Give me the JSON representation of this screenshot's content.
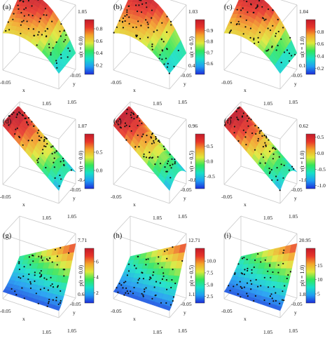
{
  "figure": {
    "colormap": [
      "#1c2cd8",
      "#1f9df2",
      "#18e0c8",
      "#32e65a",
      "#dfe93a",
      "#f3a52a",
      "#e8362a",
      "#c21a2a"
    ],
    "point_color": "#111111",
    "box_color": "#c9c9c9"
  },
  "chart_data": [
    {
      "id": "a",
      "label": "(a)",
      "type": "surface3d",
      "surface": "u",
      "z_top": "1.05",
      "z_bottom": "",
      "x_label": "x",
      "y_label": "y",
      "x_ticks": [
        "-0.05",
        "1.05"
      ],
      "y_ticks": [
        "-0.05",
        "1.05"
      ],
      "colorbar_label": "u(t = 0.0)",
      "colorbar_ticks": [
        "0.8",
        "0.6",
        "0.4",
        "0.2"
      ],
      "colorbar_range": [
        0.05,
        0.95
      ],
      "colorbar_tick_values": [
        0.8,
        0.6,
        0.4,
        0.2
      ]
    },
    {
      "id": "b",
      "label": "(b)",
      "type": "surface3d",
      "surface": "u",
      "z_top": "1.03",
      "z_bottom": "0.45",
      "x_label": "x",
      "y_label": "y",
      "x_ticks": [
        "-0.05",
        "1.05"
      ],
      "y_ticks": [
        "-0.05",
        "1.05"
      ],
      "colorbar_label": "u(t = 0.5)",
      "colorbar_ticks": [
        "0.9",
        "0.8",
        "0.7",
        "0.6"
      ],
      "colorbar_range": [
        0.5,
        1.0
      ],
      "colorbar_tick_values": [
        0.9,
        0.8,
        0.7,
        0.6
      ]
    },
    {
      "id": "c",
      "label": "(c)",
      "type": "surface3d",
      "surface": "u",
      "z_top": "1.04",
      "z_bottom": "0.10",
      "x_label": "x",
      "y_label": "y",
      "x_ticks": [
        "-0.05",
        "1.05"
      ],
      "y_ticks": [
        "-0.05",
        "1.05"
      ],
      "colorbar_label": "u(t = 1.0)",
      "colorbar_ticks": [
        "0.8",
        "0.6",
        "0.4",
        "0.2"
      ],
      "colorbar_range": [
        0.1,
        1.0
      ],
      "colorbar_tick_values": [
        0.8,
        0.6,
        0.4,
        0.2
      ]
    },
    {
      "id": "d",
      "label": "(d)",
      "type": "surface3d",
      "surface": "v",
      "z_top": "1.07",
      "z_bottom": "-0.49",
      "x_label": "x",
      "y_label": "y",
      "x_ticks": [
        "-0.05",
        "1.05"
      ],
      "y_ticks": [
        "-0.05",
        "1.05"
      ],
      "colorbar_label": "v(t = 0.0)",
      "colorbar_ticks": [
        "0.5",
        "0.0"
      ],
      "colorbar_range": [
        -0.5,
        1.0
      ],
      "colorbar_tick_values": [
        0.5,
        0.0
      ]
    },
    {
      "id": "e",
      "label": "(e)",
      "type": "surface3d",
      "surface": "v",
      "z_top": "0.96",
      "z_bottom": "-0.89",
      "x_label": "x",
      "y_label": "y",
      "x_ticks": [
        "-0.05",
        "1.05"
      ],
      "y_ticks": [
        "-0.05",
        "1.05"
      ],
      "colorbar_label": "v(t = 0.5)",
      "colorbar_ticks": [
        "0.5",
        "0.0",
        "-0.5"
      ],
      "colorbar_range": [
        -0.9,
        0.9
      ],
      "colorbar_tick_values": [
        0.5,
        0.0,
        -0.5
      ]
    },
    {
      "id": "f",
      "label": "(f)",
      "type": "surface3d",
      "surface": "v",
      "z_top": "0.62",
      "z_bottom": "-1.07",
      "x_label": "x",
      "y_label": "y",
      "x_ticks": [
        "-0.05",
        "1.05"
      ],
      "y_ticks": [
        "-0.05",
        "1.05"
      ],
      "colorbar_label": "v(t = 1.0)",
      "colorbar_ticks": [
        "0.5",
        "0.0",
        "-0.5",
        "-1.0"
      ],
      "colorbar_range": [
        -1.1,
        0.6
      ],
      "colorbar_tick_values": [
        0.5,
        0.0,
        -0.5,
        -1.0
      ]
    },
    {
      "id": "g",
      "label": "(g)",
      "type": "surface3d",
      "surface": "p",
      "z_top": "7.71",
      "z_bottom": "0.68",
      "x_label": "x",
      "y_label": "y",
      "x_ticks": [
        "-0.05",
        "1.05"
      ],
      "y_ticks": [
        "-0.05",
        "1.05"
      ],
      "colorbar_label": "p(t = 0.0)",
      "colorbar_ticks": [
        "6",
        "4",
        "2"
      ],
      "colorbar_range": [
        0.7,
        7.7
      ],
      "colorbar_tick_values": [
        6,
        4,
        2
      ]
    },
    {
      "id": "h",
      "label": "(h)",
      "type": "surface3d",
      "surface": "p",
      "z_top": "12.71",
      "z_bottom": "1.12",
      "x_label": "x",
      "y_label": "y",
      "x_ticks": [
        "-0.05",
        "1.05"
      ],
      "y_ticks": [
        "-0.05",
        "1.05"
      ],
      "colorbar_label": "p(t = 0.5)",
      "colorbar_ticks": [
        "10.0",
        "7.5",
        "5.0",
        "2.5"
      ],
      "colorbar_range": [
        1.1,
        12.7
      ],
      "colorbar_tick_values": [
        10.0,
        7.5,
        5.0,
        2.5
      ]
    },
    {
      "id": "i",
      "label": "(i)",
      "type": "surface3d",
      "surface": "p",
      "z_top": "20.95",
      "z_bottom": "1.85",
      "x_label": "x",
      "y_label": "y",
      "x_ticks": [
        "-0.05",
        "1.05"
      ],
      "y_ticks": [
        "-0.05",
        "1.05"
      ],
      "colorbar_label": "p(t = 1.0)",
      "colorbar_ticks": [
        "15",
        "10",
        "5"
      ],
      "colorbar_range": [
        1.8,
        21.0
      ],
      "colorbar_tick_values": [
        15,
        10,
        5
      ]
    }
  ]
}
